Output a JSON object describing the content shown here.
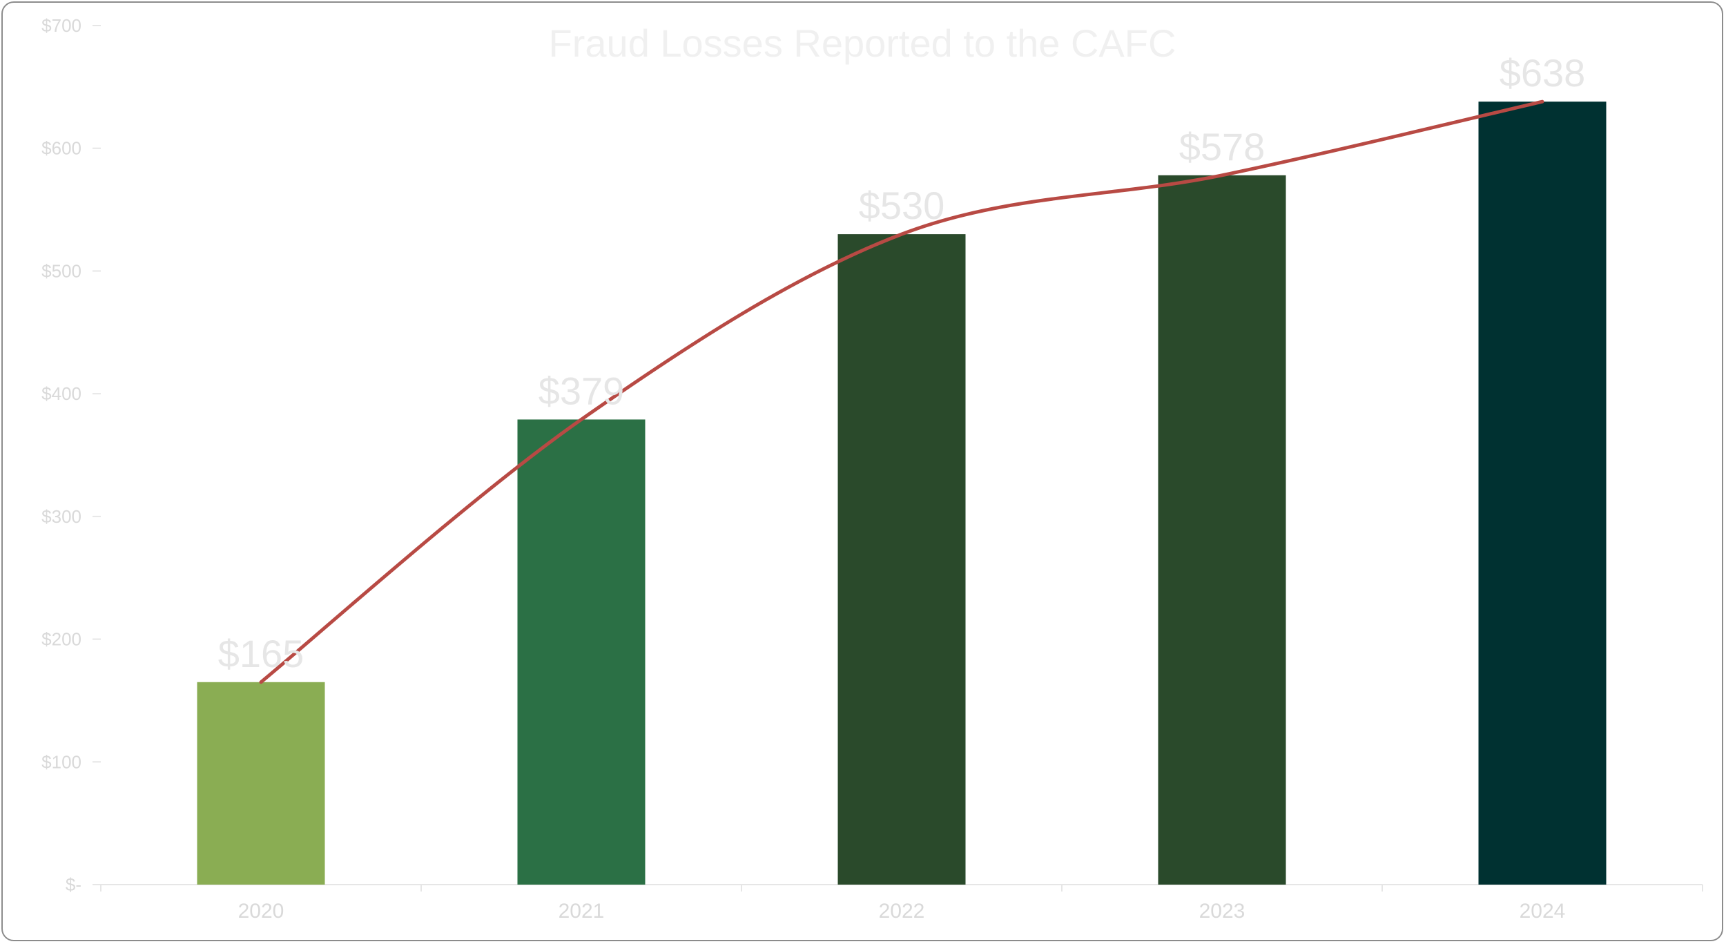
{
  "chart_data": {
    "type": "bar",
    "title": "Fraud Losses Reported to the CAFC",
    "categories": [
      "2020",
      "2021",
      "2022",
      "2023",
      "2024"
    ],
    "values": [
      165,
      379,
      530,
      578,
      638
    ],
    "value_labels": [
      "$165",
      "$379",
      "$530",
      "$578",
      "$638"
    ],
    "bar_colors": [
      "#8aad53",
      "#2b7045",
      "#2a4a2b",
      "#2a4a2b",
      "#003131"
    ],
    "line": {
      "type": "line",
      "values": [
        165,
        379,
        530,
        578,
        638
      ],
      "color": "#b84a44",
      "smooth": true
    },
    "ylim": [
      0,
      700
    ],
    "yticks": [
      0,
      100,
      200,
      300,
      400,
      500,
      600,
      700
    ],
    "ytick_labels": [
      "$-",
      "$100",
      "$200",
      "$300",
      "$400",
      "$500",
      "$600",
      "$700"
    ],
    "xlabel": "",
    "ylabel": "",
    "grid": false,
    "legend": "none"
  }
}
